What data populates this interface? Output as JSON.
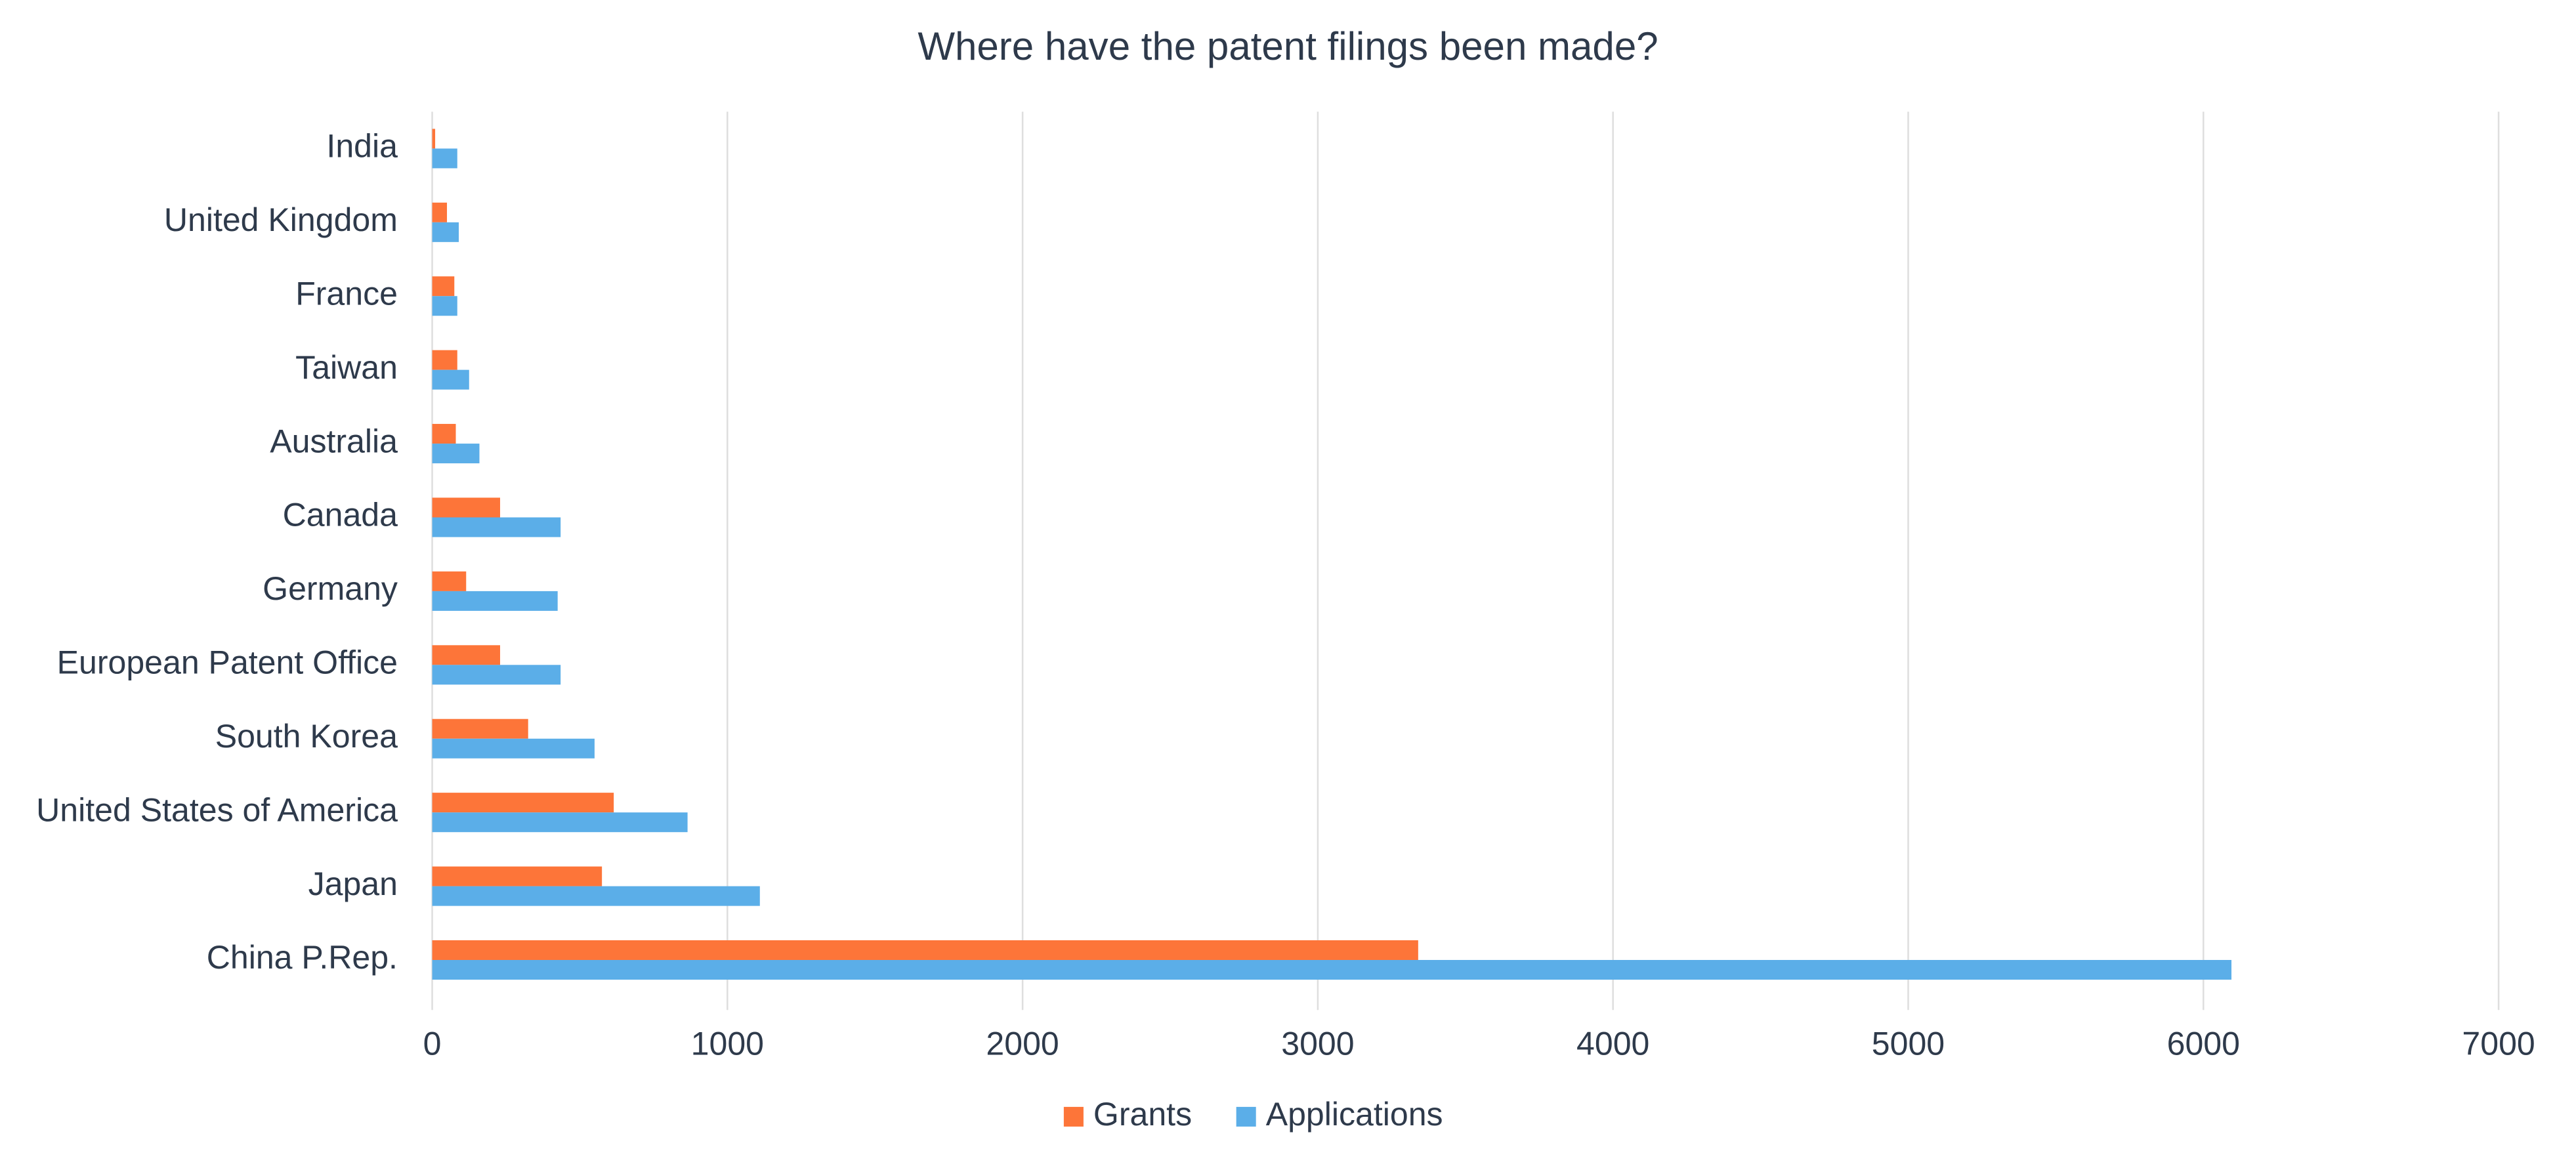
{
  "chart_data": {
    "type": "hbar",
    "title": "Where have the patent filings been made?",
    "categories": [
      "India",
      "United Kingdom",
      "France",
      "Taiwan",
      "Australia",
      "Canada",
      "Germany",
      "European Patent Office",
      "South Korea",
      "United States of America",
      "Japan",
      "China P.Rep."
    ],
    "series": [
      {
        "name": "Grants",
        "color": "#fd7539",
        "values": [
          10,
          50,
          75,
          85,
          80,
          230,
          115,
          230,
          325,
          615,
          575,
          3340
        ]
      },
      {
        "name": "Applications",
        "color": "#5baee8",
        "values": [
          85,
          90,
          85,
          125,
          160,
          435,
          425,
          435,
          550,
          865,
          1110,
          6095
        ]
      }
    ],
    "xlim": [
      0,
      7000
    ],
    "xticks": [
      0,
      1000,
      2000,
      3000,
      4000,
      5000,
      6000,
      7000
    ],
    "grid": true,
    "legend": "bottom"
  }
}
